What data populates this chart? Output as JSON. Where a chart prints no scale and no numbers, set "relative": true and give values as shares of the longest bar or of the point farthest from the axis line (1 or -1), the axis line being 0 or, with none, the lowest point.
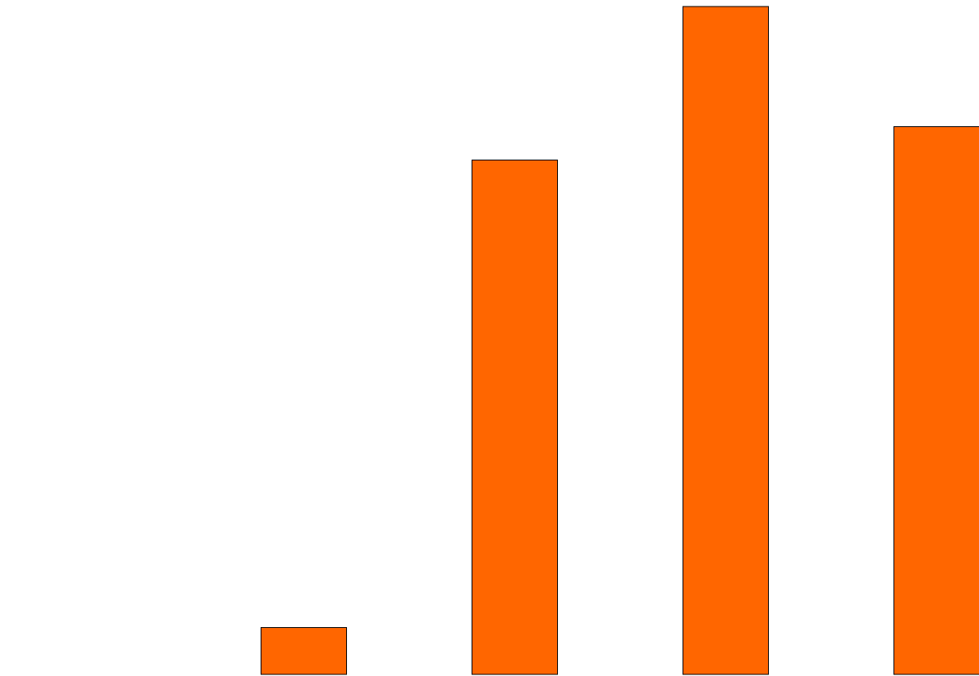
{
  "chart_data": {
    "type": "bar",
    "relative": true,
    "categories": [
      null,
      null,
      null,
      null
    ],
    "values": [
      0.07,
      0.77,
      1,
      0.82
    ],
    "color": "#ff6600"
  }
}
